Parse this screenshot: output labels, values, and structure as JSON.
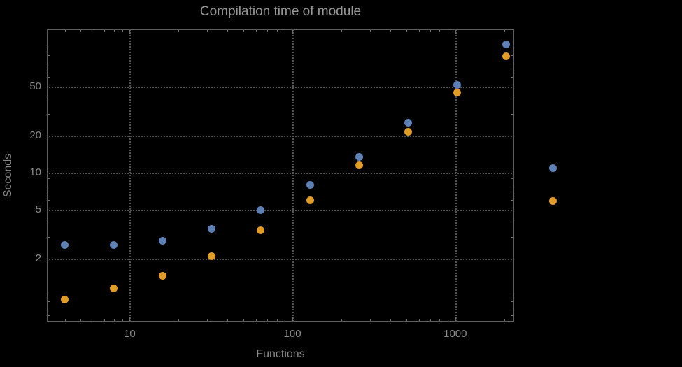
{
  "title": "Compilation time of module",
  "axes": {
    "x_label": "Functions",
    "y_label": "Seconds"
  },
  "chart_data": {
    "type": "scatter",
    "title": "Compilation time of module",
    "xlabel": "Functions",
    "ylabel": "Seconds",
    "xscale": "log",
    "yscale": "log",
    "grid": true,
    "xlim": [
      3.1,
      2300
    ],
    "ylim": [
      0.62,
      146
    ],
    "x": [
      4,
      8,
      16,
      32,
      64,
      128,
      256,
      512,
      1024,
      2048
    ],
    "series": [
      {
        "name": "series-blue",
        "color": "#5e81b5",
        "values": [
          2.6,
          2.6,
          2.8,
          3.5,
          5.0,
          8.0,
          13.5,
          25.5,
          52,
          110
        ]
      },
      {
        "name": "series-orange",
        "color": "#e09c24",
        "values": [
          0.93,
          1.15,
          1.45,
          2.1,
          3.4,
          6.0,
          11.5,
          21.5,
          45,
          88
        ]
      }
    ],
    "x_ticks": [
      {
        "value": 10,
        "label": "10"
      },
      {
        "value": 100,
        "label": "100"
      },
      {
        "value": 1000,
        "label": "1000"
      }
    ],
    "y_ticks": [
      {
        "value": 2,
        "label": "2"
      },
      {
        "value": 5,
        "label": "5"
      },
      {
        "value": 10,
        "label": "10"
      },
      {
        "value": 20,
        "label": "20"
      },
      {
        "value": 50,
        "label": "50"
      }
    ],
    "legend_position": "right"
  },
  "legend": {
    "markers": [
      {
        "series": "series-blue",
        "color": "#5e81b5"
      },
      {
        "series": "series-orange",
        "color": "#e09c24"
      }
    ]
  }
}
